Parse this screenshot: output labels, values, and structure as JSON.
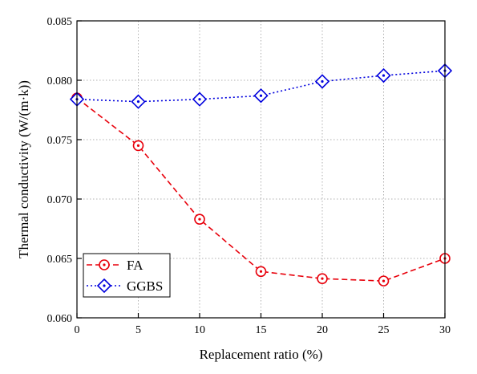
{
  "chart_data": {
    "type": "line",
    "xlabel": "Replacement ratio (%)",
    "ylabel": "Thermal conductivity (W/(m·k))",
    "xlim": [
      0,
      30
    ],
    "ylim": [
      0.06,
      0.085
    ],
    "x_ticks": [
      0,
      5,
      10,
      15,
      20,
      25,
      30
    ],
    "x_tick_labels": [
      "0",
      "5",
      "10",
      "15",
      "20",
      "25",
      "30"
    ],
    "y_ticks": [
      0.06,
      0.065,
      0.07,
      0.075,
      0.08,
      0.085
    ],
    "y_tick_labels": [
      "0.060",
      "0.065",
      "0.070",
      "0.075",
      "0.080",
      "0.085"
    ],
    "grid": true,
    "legend_position": "bottom-left",
    "x": [
      0,
      5,
      10,
      15,
      20,
      25,
      30
    ],
    "series": [
      {
        "name": "FA",
        "values": [
          0.0785,
          0.0745,
          0.0683,
          0.0639,
          0.0633,
          0.0631,
          0.065
        ],
        "color": "#e8000b",
        "line_style": "dashed",
        "marker": "circle-dot"
      },
      {
        "name": "GGBS",
        "values": [
          0.0784,
          0.0782,
          0.0784,
          0.0787,
          0.0799,
          0.0804,
          0.0808
        ],
        "color": "#0000dd",
        "line_style": "dotted",
        "marker": "diamond-dot"
      }
    ]
  }
}
